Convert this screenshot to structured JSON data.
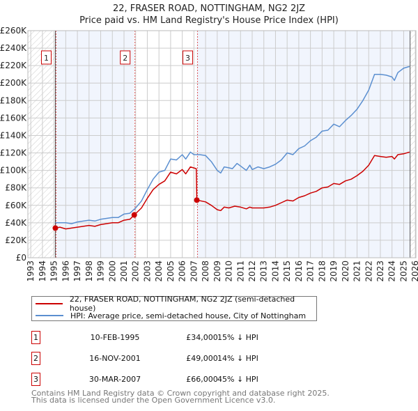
{
  "chart_data": {
    "type": "line",
    "title": "22, FRASER ROAD, NOTTINGHAM, NG2 2JZ",
    "subtitle": "Price paid vs. HM Land Registry's House Price Index (HPI)",
    "xlabel": "",
    "ylabel": "",
    "xlim": [
      1992.75,
      2026.05
    ],
    "ylim": [
      0,
      260
    ],
    "grid": true,
    "x_ticks": [
      1993,
      1994,
      1995,
      1996,
      1997,
      1998,
      1999,
      2000,
      2001,
      2002,
      2003,
      2004,
      2005,
      2006,
      2007,
      2008,
      2009,
      2010,
      2011,
      2012,
      2013,
      2014,
      2015,
      2016,
      2017,
      2018,
      2019,
      2020,
      2021,
      2022,
      2023,
      2024,
      2025,
      2026
    ],
    "y_ticks": [
      0,
      20,
      40,
      60,
      80,
      100,
      120,
      140,
      160,
      180,
      200,
      220,
      240,
      260
    ],
    "y_tick_labels": [
      "£0",
      "£20K",
      "£40K",
      "£60K",
      "£80K",
      "£100K",
      "£120K",
      "£140K",
      "£160K",
      "£180K",
      "£200K",
      "£220K",
      "£240K",
      "£260K"
    ],
    "legend_placement": "below",
    "series": [
      {
        "name": "22, FRASER ROAD, NOTTINGHAM, NG2 2JZ (semi-detached house)",
        "color": "#cc0000",
        "x": [
          1995.11,
          1995.5,
          1996,
          1996.5,
          1997,
          1998,
          1998.5,
          1999,
          2000,
          2000.5,
          2001,
          2001.5,
          2001.88,
          2002.5,
          2003,
          2003.5,
          2004,
          2004.5,
          2005,
          2005.5,
          2006,
          2006.3,
          2006.7,
          2007.2,
          2007.25,
          2008,
          2008.5,
          2009,
          2009.3,
          2009.6,
          2010,
          2010.5,
          2011,
          2011.5,
          2011.8,
          2012,
          2013,
          2013.5,
          2014,
          2014.5,
          2015,
          2015.5,
          2016,
          2016.5,
          2017,
          2017.5,
          2018,
          2018.5,
          2019,
          2019.5,
          2020,
          2020.5,
          2021,
          2021.5,
          2022,
          2022.5,
          2023,
          2023.5,
          2024,
          2024.2,
          2024.5,
          2025,
          2025.5
        ],
        "values": [
          34,
          35,
          33,
          34,
          35,
          37,
          36,
          38,
          40,
          40,
          43,
          44,
          49,
          57,
          68,
          78,
          84,
          88,
          98,
          96,
          101,
          96,
          104,
          102,
          66,
          64,
          60,
          55,
          54,
          58,
          57,
          59,
          58,
          56,
          58,
          57,
          57,
          58,
          60,
          63,
          66,
          65,
          69,
          71,
          74,
          76,
          80,
          81,
          85,
          84,
          88,
          90,
          94,
          99,
          106,
          117,
          116,
          115,
          116,
          113,
          118,
          119,
          121
        ]
      },
      {
        "name": "HPI: Average price, semi-detached house, City of Nottingham",
        "color": "#5b8fd0",
        "x": [
          1995.11,
          1996,
          1996.5,
          1997,
          1998,
          1998.5,
          1999,
          2000,
          2000.5,
          2001,
          2001.5,
          2002,
          2002.5,
          2003,
          2003.5,
          2004,
          2004.5,
          2005,
          2005.5,
          2006,
          2006.3,
          2006.7,
          2007,
          2007.5,
          2008,
          2008.5,
          2009,
          2009.3,
          2009.6,
          2010,
          2010.3,
          2010.7,
          2011,
          2011.5,
          2011.8,
          2012,
          2012.5,
          2013,
          2013.5,
          2014,
          2014.5,
          2015,
          2015.5,
          2016,
          2016.5,
          2017,
          2017.5,
          2018,
          2018.5,
          2019,
          2019.5,
          2020,
          2020.5,
          2021,
          2021.5,
          2022,
          2022.5,
          2023,
          2023.5,
          2024,
          2024.2,
          2024.5,
          2025,
          2025.5
        ],
        "values": [
          40,
          40,
          39,
          41,
          43,
          42,
          44,
          46,
          46,
          50,
          51,
          57,
          65,
          78,
          90,
          98,
          100,
          113,
          112,
          118,
          113,
          121,
          118,
          118,
          117,
          110,
          100,
          97,
          104,
          103,
          102,
          108,
          105,
          100,
          106,
          101,
          104,
          102,
          104,
          107,
          112,
          120,
          118,
          125,
          128,
          134,
          138,
          145,
          146,
          153,
          150,
          157,
          163,
          170,
          180,
          192,
          210,
          210,
          209,
          207,
          203,
          212,
          217,
          219
        ]
      }
    ],
    "sales": [
      {
        "label": "1",
        "x": 1995.11,
        "value": 34
      },
      {
        "label": "2",
        "x": 2001.88,
        "value": 49
      },
      {
        "label": "3",
        "x": 2007.25,
        "value": 66
      }
    ],
    "data_end": 2025.55
  },
  "legend": {
    "property": "22, FRASER ROAD, NOTTINGHAM, NG2 2JZ (semi-detached house)",
    "hpi": "HPI: Average price, semi-detached house, City of Nottingham"
  },
  "transactions": [
    {
      "num": "1",
      "date": "10-FEB-1995",
      "price": "£34,000",
      "hpi": "15% ↓ HPI"
    },
    {
      "num": "2",
      "date": "16-NOV-2001",
      "price": "£49,000",
      "hpi": "14% ↓ HPI"
    },
    {
      "num": "3",
      "date": "30-MAR-2007",
      "price": "£66,000",
      "hpi": "45% ↓ HPI"
    }
  ],
  "footer": {
    "line1": "Contains HM Land Registry data © Crown copyright and database right 2025.",
    "line2": "This data is licensed under the Open Government Licence v3.0."
  }
}
